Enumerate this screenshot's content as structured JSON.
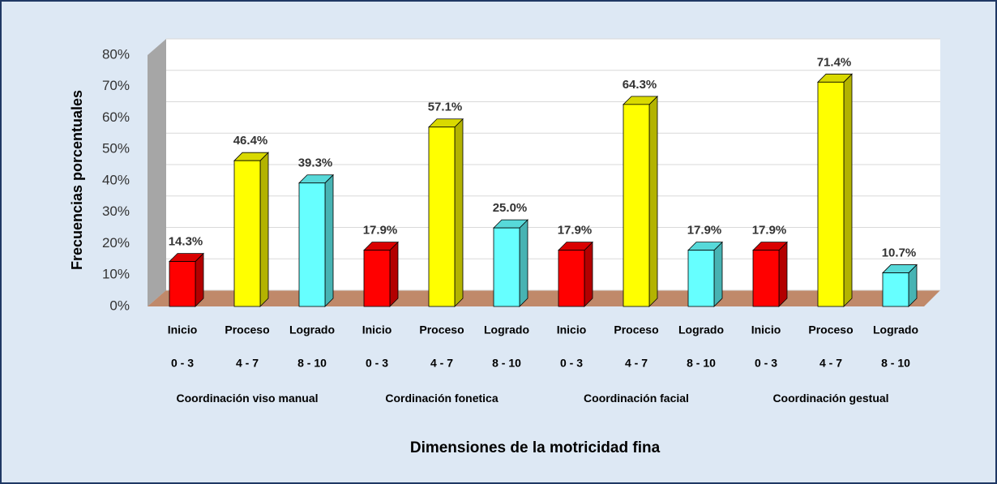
{
  "chart_data": {
    "type": "bar3d",
    "x_label": "Dimensiones de la motricidad fina",
    "y_label": "Frecuencias porcentuales",
    "categories": [
      "Coordinación viso manual",
      "Cordinación fonetica",
      "Coordinación facial",
      "Coordinación gestual"
    ],
    "series": [
      {
        "name": "Inicio",
        "range": "0 - 3",
        "color": "#ff0000",
        "values": [
          14.3,
          17.9,
          17.9,
          17.9
        ],
        "value_labels": [
          "14.3%",
          "17.9%",
          "17.9%",
          "17.9%"
        ]
      },
      {
        "name": "Proceso",
        "range": "4 - 7",
        "color": "#ffff00",
        "values": [
          46.4,
          57.1,
          64.3,
          71.4
        ],
        "value_labels": [
          "46.4%",
          "57.1%",
          "64.3%",
          "71.4%"
        ]
      },
      {
        "name": "Logrado",
        "range": "8 - 10",
        "color": "#66ffff",
        "values": [
          39.3,
          25.0,
          17.9,
          10.7
        ],
        "value_labels": [
          "39.3%",
          "25.0%",
          "17.9%",
          "10.7%"
        ]
      }
    ],
    "ylim": [
      0,
      80
    ],
    "yticks": [
      {
        "value": 0,
        "label": "0%"
      },
      {
        "value": 10,
        "label": "10%"
      },
      {
        "value": 20,
        "label": "20%"
      },
      {
        "value": 30,
        "label": "30%"
      },
      {
        "value": 40,
        "label": "40%"
      },
      {
        "value": 50,
        "label": "50%"
      },
      {
        "value": 60,
        "label": "60%"
      },
      {
        "value": 70,
        "label": "70%"
      },
      {
        "value": 80,
        "label": "80%"
      }
    ],
    "grid": true
  }
}
